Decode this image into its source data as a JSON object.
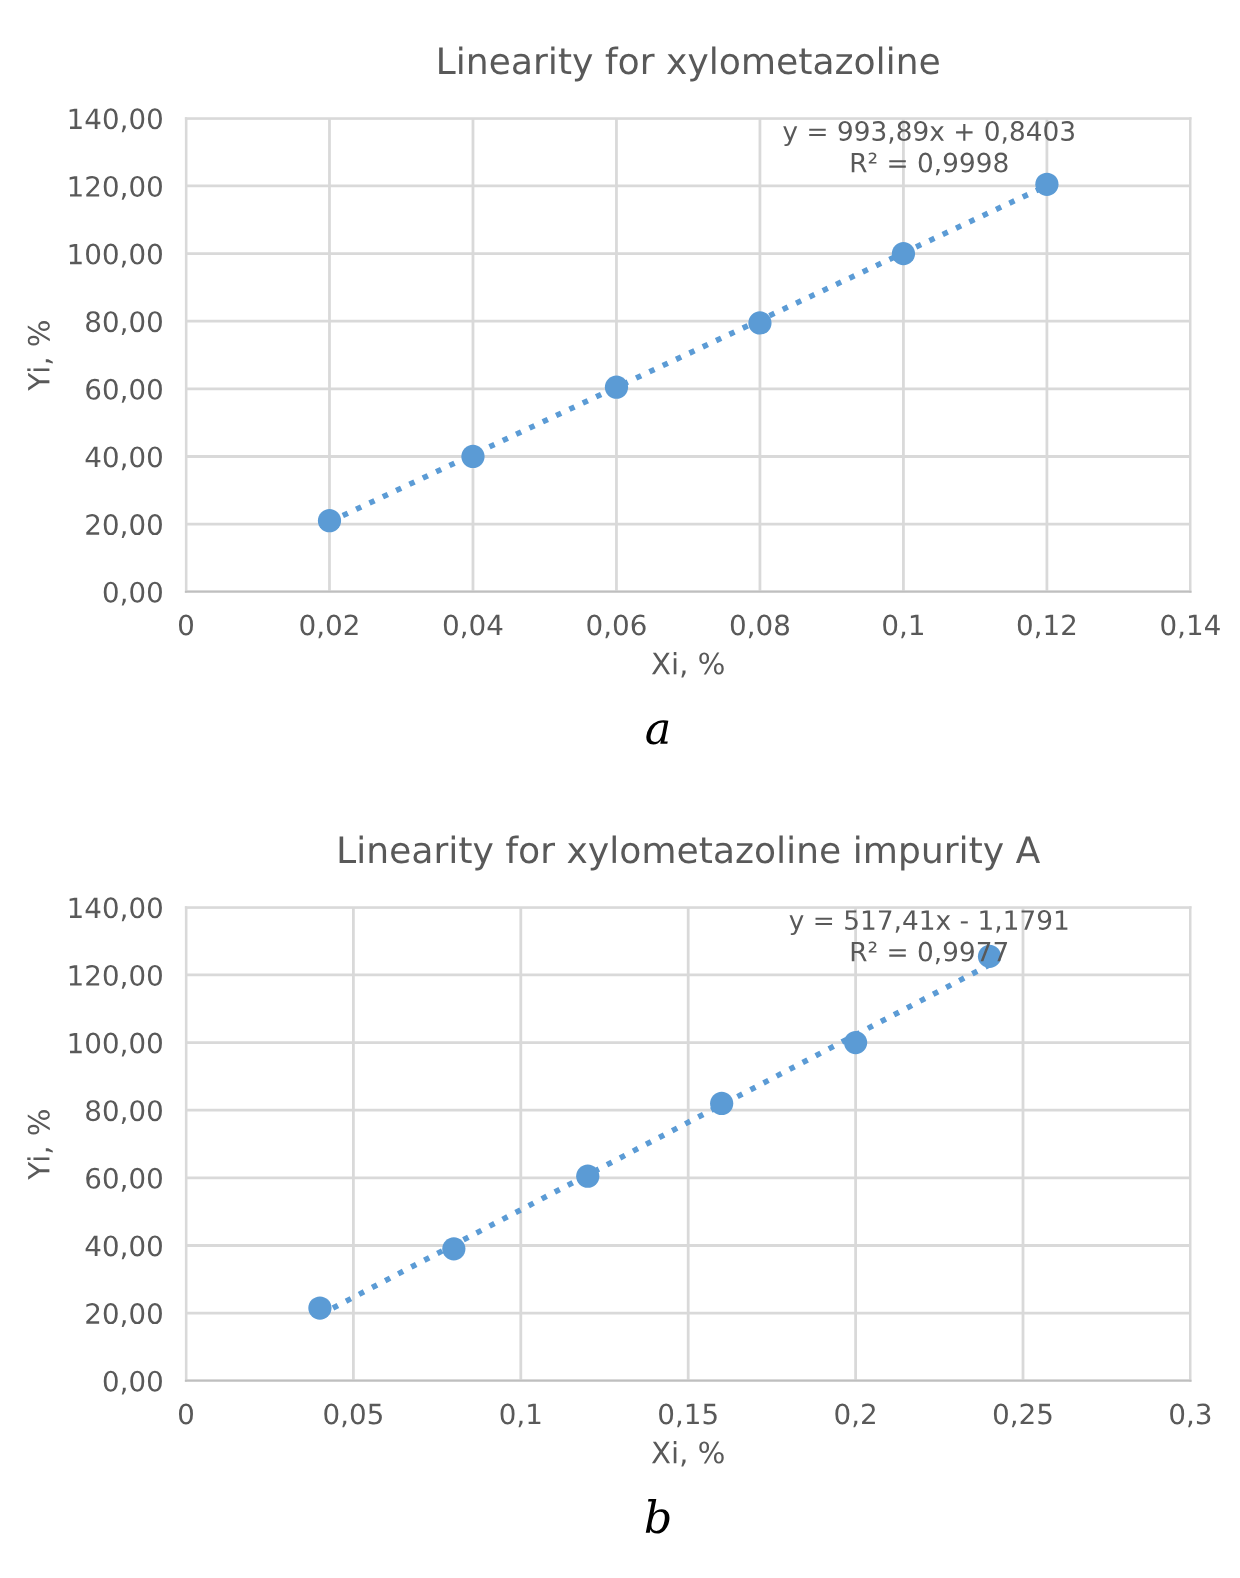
{
  "chart_data": [
    {
      "type": "scatter",
      "title": "Linearity for xylometazoline",
      "xlabel": "Xi, %",
      "ylabel": "Yi, %",
      "x": [
        0.02,
        0.04,
        0.06,
        0.08,
        0.1,
        0.12
      ],
      "series": [
        {
          "color": "#5b9bd5",
          "marker": "circle",
          "values": [
            21,
            40,
            60.5,
            79.5,
            100,
            120.5
          ]
        },
        {
          "type": "line",
          "color": "#5b9bd5",
          "marker": "none",
          "line_style": "dotted",
          "x": [
            0.02,
            0.12
          ],
          "values": [
            20.7,
            120.1
          ]
        }
      ],
      "xlim": [
        0,
        0.14
      ],
      "xticks": [
        0,
        {
          "value": 0.02,
          "label": "0,02"
        },
        {
          "value": 0.04,
          "label": "0,04"
        },
        {
          "value": 0.06,
          "label": "0,06"
        },
        {
          "value": 0.08,
          "label": "0,08"
        },
        {
          "value": 0.1,
          "label": "0,1"
        },
        {
          "value": 0.12,
          "label": "0,12"
        },
        {
          "value": 0.14,
          "label": "0,14"
        }
      ],
      "ylim": [
        0,
        140
      ],
      "yticks": [
        {
          "value": 0,
          "label": "0,00"
        },
        {
          "value": 20,
          "label": "20,00"
        },
        {
          "value": 40,
          "label": "40,00"
        },
        {
          "value": 60,
          "label": "60,00"
        },
        {
          "value": 80,
          "label": "80,00"
        },
        {
          "value": 100,
          "label": "100,00"
        },
        {
          "value": 120,
          "label": "120,00"
        },
        {
          "value": 140,
          "label": "140,00"
        }
      ],
      "grid": true,
      "annotations": [
        "y = 993,89x + 0,8403\nR² = 0,9998",
        "a"
      ]
    },
    {
      "type": "scatter",
      "title": "Linearity for xylometazoline impurity A",
      "xlabel": "Xi, %",
      "ylabel": "Yi, %",
      "x": [
        0.04,
        0.08,
        0.12,
        0.16,
        0.2,
        0.24
      ],
      "series": [
        {
          "color": "#5b9bd5",
          "marker": "circle",
          "values": [
            21.5,
            39,
            60.5,
            82,
            100,
            125.5
          ]
        },
        {
          "type": "line",
          "color": "#5b9bd5",
          "marker": "none",
          "line_style": "dotted",
          "x": [
            0.04,
            0.24
          ],
          "values": [
            19.5,
            123.0
          ]
        }
      ],
      "xlim": [
        0,
        0.3
      ],
      "xticks": [
        0,
        {
          "value": 0.05,
          "label": "0,05"
        },
        {
          "value": 0.1,
          "label": "0,1"
        },
        {
          "value": 0.15,
          "label": "0,15"
        },
        {
          "value": 0.2,
          "label": "0,2"
        },
        {
          "value": 0.25,
          "label": "0,25"
        },
        {
          "value": 0.3,
          "label": "0,3"
        }
      ],
      "ylim": [
        0,
        140
      ],
      "yticks": [
        {
          "value": 0,
          "label": "0,00"
        },
        {
          "value": 20,
          "label": "20,00"
        },
        {
          "value": 40,
          "label": "40,00"
        },
        {
          "value": 60,
          "label": "60,00"
        },
        {
          "value": 80,
          "label": "80,00"
        },
        {
          "value": 100,
          "label": "100,00"
        },
        {
          "value": 120,
          "label": "120,00"
        },
        {
          "value": 140,
          "label": "140,00"
        }
      ],
      "grid": true,
      "annotations": [
        "y = 517,41x - 1,1791\nR² = 0,9977",
        "b"
      ]
    }
  ]
}
